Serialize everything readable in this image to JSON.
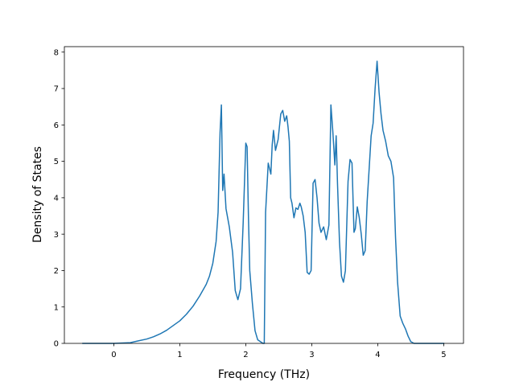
{
  "chart_data": {
    "type": "line",
    "title": "",
    "xlabel": "Frequency (THz)",
    "ylabel": "Density of States",
    "xlim": [
      -0.75,
      5.3
    ],
    "ylim": [
      0,
      8.15
    ],
    "xticks": [
      0,
      1,
      2,
      3,
      4,
      5
    ],
    "xtick_labels": [
      "0",
      "1",
      "2",
      "3",
      "4",
      "5"
    ],
    "yticks": [
      0,
      1,
      2,
      3,
      4,
      5,
      6,
      7,
      8
    ],
    "ytick_labels": [
      "0",
      "1",
      "2",
      "3",
      "4",
      "5",
      "6",
      "7",
      "8"
    ],
    "grid": false,
    "legend": "none",
    "series": [
      {
        "color": "#1f77b4",
        "x": [
          -0.47,
          0.0,
          0.25,
          0.35,
          0.5,
          0.6,
          0.7,
          0.8,
          0.9,
          1.0,
          1.1,
          1.2,
          1.3,
          1.4,
          1.45,
          1.5,
          1.55,
          1.58,
          1.61,
          1.63,
          1.65,
          1.67,
          1.7,
          1.75,
          1.8,
          1.84,
          1.88,
          1.92,
          1.96,
          2.0,
          2.02,
          2.04,
          2.06,
          2.1,
          2.14,
          2.18,
          2.22,
          2.26,
          2.28,
          2.3,
          2.34,
          2.38,
          2.4,
          2.42,
          2.45,
          2.49,
          2.53,
          2.56,
          2.59,
          2.62,
          2.64,
          2.66,
          2.68,
          2.7,
          2.73,
          2.76,
          2.79,
          2.82,
          2.84,
          2.87,
          2.9,
          2.93,
          2.96,
          2.99,
          3.02,
          3.05,
          3.08,
          3.11,
          3.14,
          3.18,
          3.22,
          3.26,
          3.29,
          3.32,
          3.35,
          3.37,
          3.39,
          3.42,
          3.45,
          3.48,
          3.51,
          3.55,
          3.58,
          3.61,
          3.64,
          3.66,
          3.69,
          3.72,
          3.75,
          3.78,
          3.81,
          3.84,
          3.87,
          3.9,
          3.93,
          3.96,
          3.99,
          4.02,
          4.05,
          4.08,
          4.12,
          4.16,
          4.2,
          4.24,
          4.27,
          4.3,
          4.34,
          4.38,
          4.42,
          4.46,
          4.5,
          4.55,
          4.6,
          4.8,
          5.0
        ],
        "y": [
          0.0,
          0.0,
          0.02,
          0.06,
          0.12,
          0.18,
          0.26,
          0.36,
          0.49,
          0.62,
          0.8,
          1.02,
          1.3,
          1.62,
          1.85,
          2.2,
          2.8,
          3.6,
          5.8,
          6.55,
          4.2,
          4.65,
          3.7,
          3.2,
          2.5,
          1.45,
          1.2,
          1.5,
          3.3,
          5.5,
          5.4,
          3.5,
          2.0,
          1.1,
          0.35,
          0.1,
          0.05,
          0.0,
          0.0,
          3.6,
          4.95,
          4.65,
          5.45,
          5.85,
          5.3,
          5.6,
          6.3,
          6.4,
          6.1,
          6.25,
          5.95,
          5.55,
          4.0,
          3.85,
          3.45,
          3.72,
          3.68,
          3.85,
          3.75,
          3.5,
          3.05,
          1.95,
          1.9,
          2.0,
          4.4,
          4.5,
          4.0,
          3.3,
          3.05,
          3.2,
          2.85,
          3.25,
          6.55,
          5.8,
          4.9,
          5.7,
          4.4,
          2.8,
          1.85,
          1.68,
          2.0,
          4.45,
          5.05,
          4.95,
          3.05,
          3.15,
          3.75,
          3.45,
          3.0,
          2.42,
          2.55,
          3.9,
          4.8,
          5.7,
          6.05,
          7.0,
          7.75,
          6.9,
          6.3,
          5.85,
          5.55,
          5.15,
          5.0,
          4.55,
          2.9,
          1.7,
          0.75,
          0.55,
          0.4,
          0.2,
          0.05,
          0.0,
          0.0,
          0.0,
          0.0
        ]
      }
    ]
  }
}
